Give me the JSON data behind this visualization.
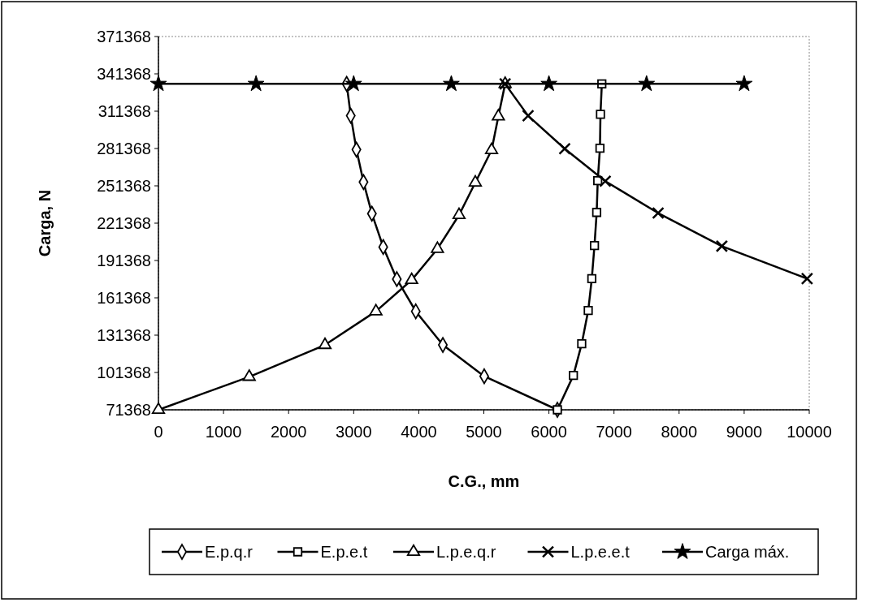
{
  "chart_data": {
    "type": "line",
    "xlabel": "C.G., mm",
    "ylabel": "Carga, N",
    "xlim": [
      0,
      10000
    ],
    "xticks": [
      0,
      1000,
      2000,
      3000,
      4000,
      5000,
      6000,
      7000,
      8000,
      9000,
      10000
    ],
    "ylim": [
      71368,
      371368
    ],
    "yticks": [
      71368,
      101368,
      131368,
      161368,
      191368,
      221368,
      251368,
      281368,
      311368,
      341368,
      371368
    ],
    "grid": false,
    "legend": "bottom",
    "series": [
      {
        "name": "E.p.q.r",
        "color": "#000000",
        "marker": "diamond",
        "x": [
          2892,
          2955,
          3042,
          3151,
          3280,
          3454,
          3663,
          3954,
          4370,
          5006,
          6130
        ],
        "values": [
          333300,
          307700,
          280500,
          254400,
          229000,
          202200,
          176400,
          150500,
          123500,
          98300,
          71368
        ]
      },
      {
        "name": "E.p.e.t",
        "color": "#000000",
        "marker": "square",
        "x": [
          6130,
          6376,
          6504,
          6604,
          6659,
          6700,
          6734,
          6750,
          6784,
          6792,
          6813
        ],
        "values": [
          71368,
          99000,
          124400,
          151200,
          176800,
          203300,
          230000,
          255500,
          281600,
          308800,
          333300
        ]
      },
      {
        "name": "L.p.e.q.r",
        "color": "#000000",
        "marker": "triangle",
        "x": [
          0,
          1395,
          2559,
          3342,
          3891,
          4287,
          4619,
          4869,
          5119,
          5223,
          5327
        ],
        "values": [
          71368,
          97900,
          123500,
          150500,
          175700,
          200700,
          227900,
          254000,
          280100,
          307200,
          333300
        ]
      },
      {
        "name": "L.p.e.e.t",
        "color": "#000000",
        "marker": "cross",
        "x": [
          5327,
          5680,
          6242,
          6866,
          7678,
          8657,
          9967
        ],
        "values": [
          333300,
          307700,
          281200,
          255100,
          229500,
          202900,
          176800
        ]
      },
      {
        "name": "Carga máx.",
        "color": "#000000",
        "marker": "star",
        "x": [
          0,
          1500,
          3000,
          4500,
          6000,
          7500,
          9000
        ],
        "values": [
          333300,
          333300,
          333300,
          333300,
          333300,
          333300,
          333300
        ]
      }
    ]
  }
}
